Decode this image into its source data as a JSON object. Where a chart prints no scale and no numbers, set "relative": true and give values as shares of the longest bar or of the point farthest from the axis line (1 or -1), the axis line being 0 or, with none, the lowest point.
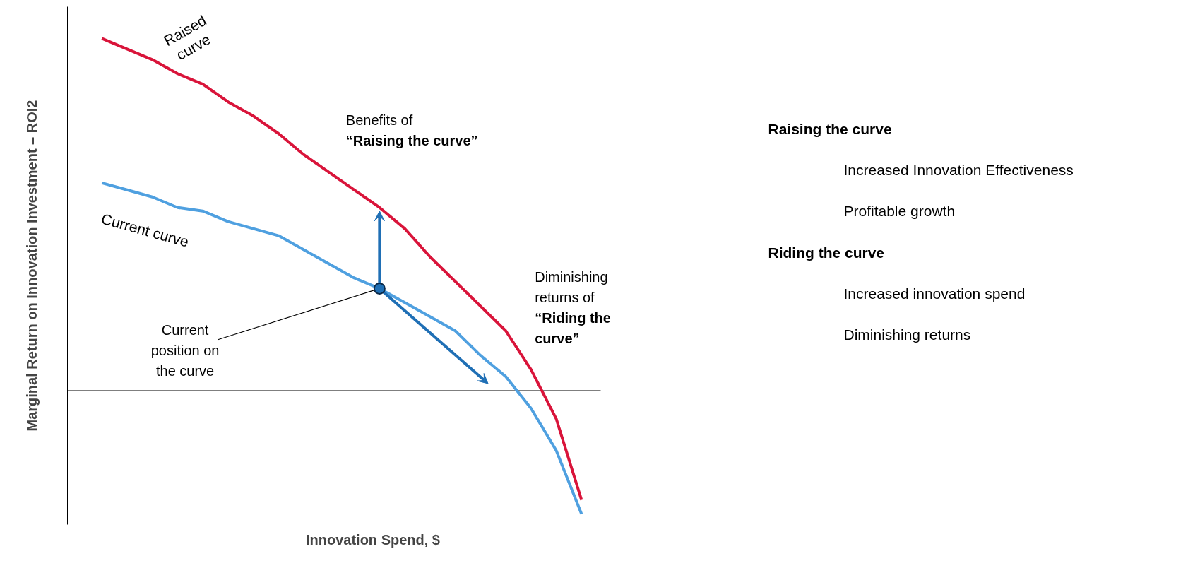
{
  "chart_data": [
    {
      "type": "line",
      "relative": true,
      "xlabel": "Innovation Spend, $",
      "ylabel": "Marginal Return on Innovation Investment – ROI2",
      "categories": [
        null,
        null,
        null,
        null,
        null,
        null,
        null,
        null,
        null,
        null,
        null,
        null,
        null,
        null,
        null,
        null,
        null,
        null,
        null,
        null
      ],
      "series": [
        {
          "name": "Raised curve",
          "color": "#d9143a",
          "values": [
            1.0,
            0.97,
            0.94,
            0.9,
            0.87,
            0.82,
            0.78,
            0.73,
            0.67,
            0.62,
            0.57,
            0.52,
            0.46,
            0.38,
            0.31,
            0.24,
            0.17,
            0.06,
            -0.08,
            -0.31
          ]
        },
        {
          "name": "Current curve",
          "color": "#4fa0e0",
          "values": [
            0.59,
            0.57,
            0.55,
            0.52,
            0.51,
            0.48,
            0.46,
            0.44,
            0.4,
            0.36,
            0.32,
            0.29,
            0.25,
            0.21,
            0.17,
            0.1,
            0.04,
            -0.05,
            -0.17,
            -0.35
          ]
        }
      ],
      "annotations": [
        "Benefits of\n“Raising the curve”",
        "Diminishing\nreturns of\n“Riding the\ncurve”",
        "Current\nposition on\nthe curve"
      ]
    },
    {
      "type": "other",
      "title": "Raising the curve",
      "annotations": [
        "Increased Innovation Effectiveness",
        "Profitable growth"
      ]
    },
    {
      "type": "other",
      "title": "Riding the curve",
      "annotations": [
        "Increased innovation spend",
        "Diminishing returns"
      ]
    }
  ]
}
